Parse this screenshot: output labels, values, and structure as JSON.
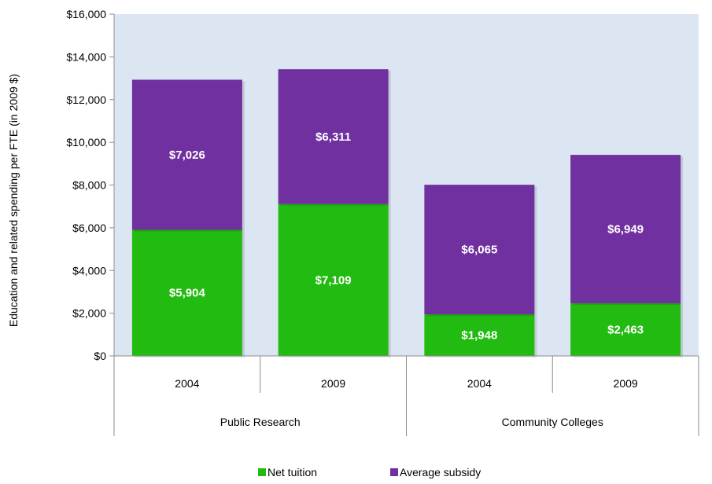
{
  "chart_data": {
    "type": "bar",
    "stacked": true,
    "title": "",
    "ylabel": "Education and related spending per FTE (in 2009 $)",
    "xlabel": "",
    "ylim": [
      0,
      16000
    ],
    "yticks": [
      0,
      2000,
      4000,
      6000,
      8000,
      10000,
      12000,
      14000,
      16000
    ],
    "ytick_labels": [
      "$0",
      "$2,000",
      "$4,000",
      "$6,000",
      "$8,000",
      "$10,000",
      "$12,000",
      "$14,000",
      "$16,000"
    ],
    "categories": [
      "2004",
      "2009",
      "2004",
      "2009"
    ],
    "groups": [
      {
        "label": "Public Research",
        "categories": [
          0,
          1
        ]
      },
      {
        "label": "Community Colleges",
        "categories": [
          2,
          3
        ]
      }
    ],
    "series": [
      {
        "name": "Net tuition",
        "color": "#22bb11",
        "values": [
          5904,
          7109,
          1948,
          2463
        ],
        "labels": [
          "$5,904",
          "$7,109",
          "$1,948",
          "$2,463"
        ]
      },
      {
        "name": "Average subsidy",
        "color": "#7030a0",
        "values": [
          7026,
          6311,
          6065,
          6949
        ],
        "labels": [
          "$7,026",
          "$6,311",
          "$6,065",
          "$6,949"
        ]
      }
    ],
    "grid": false,
    "plot_background": "#dce6f2",
    "legend_position": "bottom"
  }
}
